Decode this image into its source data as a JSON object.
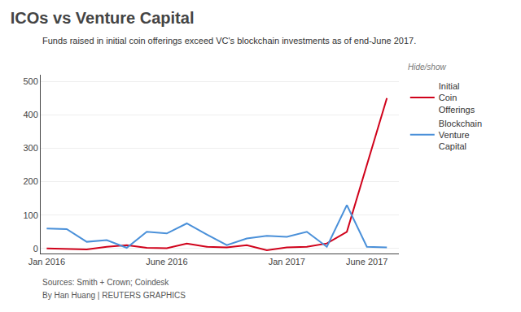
{
  "chart_data": {
    "type": "line",
    "title": "ICOs vs Venture Capital",
    "subtitle": "Funds raised in initial coin offerings exceed VC's blockchain investments as of end-June 2017.",
    "annotations": [
      "Hide/show",
      "Sources: Smith + Crown; Coindesk",
      "By Han Huang | REUTERS GRAPHICS"
    ],
    "x": [
      0,
      1,
      2,
      3,
      4,
      5,
      6,
      7,
      8,
      9,
      10,
      11,
      12,
      13,
      14,
      15,
      16,
      17
    ],
    "series": [
      {
        "name": "Initial\nCoin\nOfferings",
        "color": "#d0021b",
        "values": [
          0,
          -2,
          -3,
          5,
          10,
          2,
          1,
          15,
          5,
          3,
          10,
          -5,
          3,
          5,
          15,
          50,
          250,
          450
        ]
      },
      {
        "name": "Blockchain\nVenture\nCapital",
        "color": "#4a90d9",
        "values": [
          60,
          58,
          20,
          25,
          2,
          50,
          45,
          75,
          42,
          10,
          30,
          38,
          35,
          50,
          5,
          130,
          5,
          3
        ]
      }
    ],
    "xlim": [
      -0.3,
      17.6
    ],
    "xticks": [
      {
        "value": 0,
        "label": "Jan 2016"
      },
      {
        "value": 6,
        "label": "June 2016"
      },
      {
        "value": 12,
        "label": "Jan 2017"
      },
      {
        "value": 16,
        "label": "June 2017"
      }
    ],
    "ylim": [
      -15,
      520
    ],
    "yticks": [
      0,
      100,
      200,
      300,
      400,
      500
    ],
    "grid": true,
    "legend": "right"
  }
}
